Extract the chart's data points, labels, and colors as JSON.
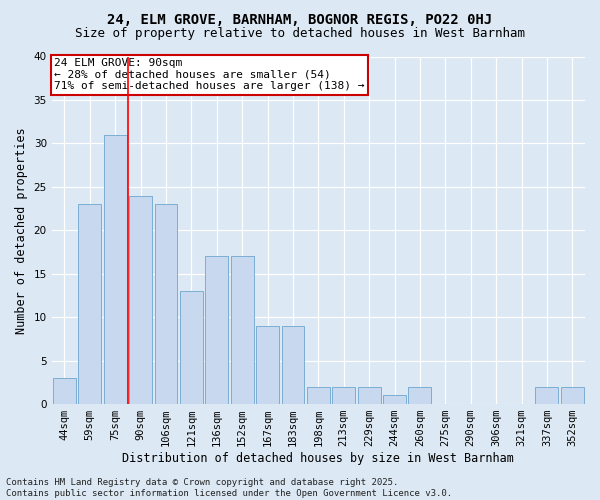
{
  "title1": "24, ELM GROVE, BARNHAM, BOGNOR REGIS, PO22 0HJ",
  "title2": "Size of property relative to detached houses in West Barnham",
  "xlabel": "Distribution of detached houses by size in West Barnham",
  "ylabel": "Number of detached properties",
  "categories": [
    "44sqm",
    "59sqm",
    "75sqm",
    "90sqm",
    "106sqm",
    "121sqm",
    "136sqm",
    "152sqm",
    "167sqm",
    "183sqm",
    "198sqm",
    "213sqm",
    "229sqm",
    "244sqm",
    "260sqm",
    "275sqm",
    "290sqm",
    "306sqm",
    "321sqm",
    "337sqm",
    "352sqm"
  ],
  "values": [
    3,
    23,
    31,
    24,
    23,
    13,
    17,
    17,
    9,
    9,
    2,
    2,
    2,
    1,
    2,
    0,
    0,
    0,
    0,
    2,
    2
  ],
  "bar_color": "#c8d8ee",
  "bar_edge_color": "#7badd4",
  "red_line_index": 3,
  "annotation_line1": "24 ELM GROVE: 90sqm",
  "annotation_line2": "← 28% of detached houses are smaller (54)",
  "annotation_line3": "71% of semi-detached houses are larger (138) →",
  "annotation_box_color": "#ffffff",
  "annotation_box_edge": "#cc0000",
  "ylim": [
    0,
    40
  ],
  "yticks": [
    0,
    5,
    10,
    15,
    20,
    25,
    30,
    35,
    40
  ],
  "background_color": "#dce8f4",
  "plot_bg_color": "#dce8f4",
  "footer1": "Contains HM Land Registry data © Crown copyright and database right 2025.",
  "footer2": "Contains public sector information licensed under the Open Government Licence v3.0.",
  "title1_fontsize": 10,
  "title2_fontsize": 9,
  "axis_label_fontsize": 8.5,
  "tick_fontsize": 7.5,
  "annotation_fontsize": 8,
  "footer_fontsize": 6.5
}
